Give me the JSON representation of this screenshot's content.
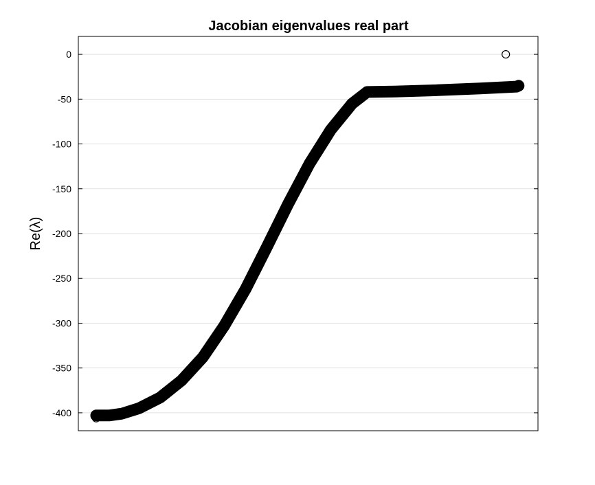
{
  "chart_data": {
    "type": "scatter",
    "title": "Jacobian eigenvalues real part",
    "xlabel": "",
    "ylabel": "Re(λ)",
    "ylim": [
      -420,
      20
    ],
    "xlim": [
      0,
      1
    ],
    "yticks": [
      0,
      -50,
      -100,
      -150,
      -200,
      -250,
      -300,
      -350,
      -400
    ],
    "ytick_labels": [
      "0",
      "-50",
      "-100",
      "-150",
      "-200",
      "-250",
      "-300",
      "-350",
      "-400"
    ],
    "grid": true,
    "x_tick_labels_visible": false,
    "marker": "circle-open",
    "color": "#000000",
    "series": [
      {
        "values": [
          [
            0.0,
            -406
          ],
          [
            0.0,
            -403
          ],
          [
            0.03,
            -403
          ],
          [
            0.06,
            -401
          ],
          [
            0.1,
            -395
          ],
          [
            0.15,
            -383
          ],
          [
            0.2,
            -364
          ],
          [
            0.25,
            -338
          ],
          [
            0.3,
            -303
          ],
          [
            0.35,
            -262
          ],
          [
            0.4,
            -215
          ],
          [
            0.45,
            -167
          ],
          [
            0.5,
            -122
          ],
          [
            0.55,
            -84
          ],
          [
            0.6,
            -55
          ],
          [
            0.635,
            -42
          ],
          [
            0.7,
            -41.5
          ],
          [
            0.8,
            -40
          ],
          [
            0.9,
            -38
          ],
          [
            0.985,
            -36
          ],
          [
            0.99,
            -35
          ],
          [
            0.96,
            0
          ]
        ]
      }
    ]
  }
}
